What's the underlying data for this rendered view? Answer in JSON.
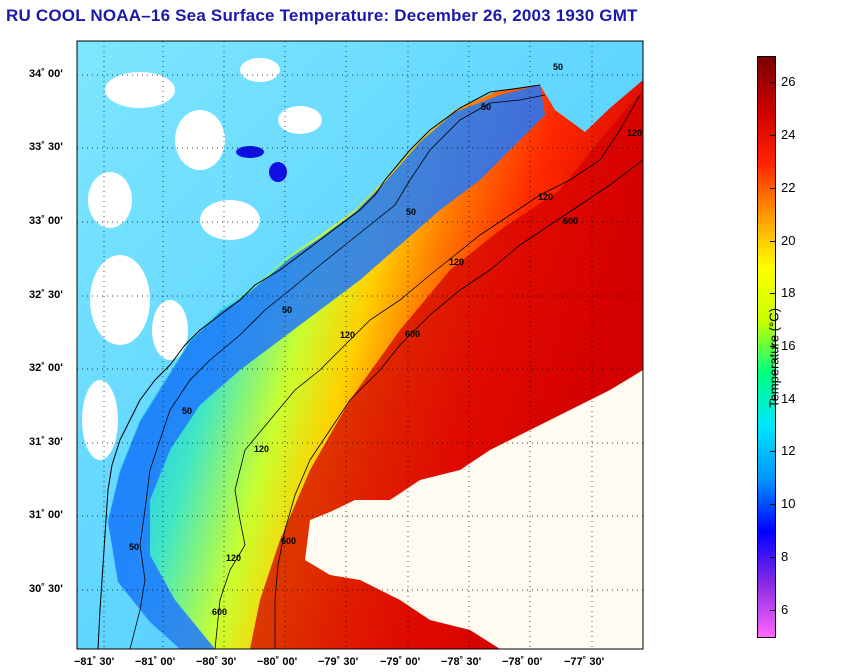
{
  "title": "RU COOL  NOAA–16  Sea Surface Temperature:  December 26, 2003 1930 GMT",
  "lat_labels": [
    "34˚ 00'",
    "33˚ 30'",
    "33˚ 00'",
    "32˚ 30'",
    "32˚ 00'",
    "31˚ 30'",
    "31˚ 00'",
    "30˚ 30'"
  ],
  "lon_labels": [
    "−81˚ 30'",
    "−81˚ 00'",
    "−80˚ 30'",
    "−80˚ 00'",
    "−79˚ 30'",
    "−79˚ 00'",
    "−78˚ 30'",
    "−78˚ 00'",
    "−77˚ 30'"
  ],
  "colorbar": {
    "label": "Temperature (°C)",
    "ticks": [
      "26",
      "24",
      "22",
      "20",
      "18",
      "16",
      "14",
      "12",
      "10",
      "8",
      "6"
    ],
    "min": 5,
    "max": 27,
    "colors": [
      "#ff66ff",
      "#8a2be2",
      "#0000ff",
      "#0096ff",
      "#00e6ff",
      "#00ff80",
      "#c8ff00",
      "#ffff00",
      "#ff9900",
      "#ff2200",
      "#cc0000",
      "#7a0000"
    ]
  },
  "isobaths": {
    "labels": [
      "50",
      "50",
      "50",
      "50",
      "50",
      "50",
      "120",
      "120",
      "120",
      "120",
      "120",
      "120",
      "600",
      "600",
      "600",
      "600"
    ]
  }
}
